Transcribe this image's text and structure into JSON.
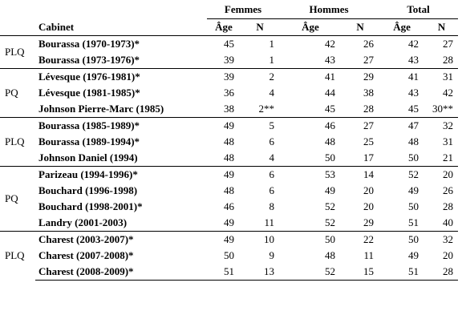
{
  "header": {
    "groups": [
      "Femmes",
      "Hommes",
      "Total"
    ],
    "cabinet_label": "Cabinet",
    "age_label": "Âge",
    "n_label": "N"
  },
  "groups": [
    {
      "party": "PLQ",
      "rows": [
        {
          "name": "Bourassa (1970-1973)*",
          "f_age": "45",
          "f_n": "1",
          "h_age": "42",
          "h_n": "26",
          "t_age": "42",
          "t_n": "27"
        },
        {
          "name": "Bourassa (1973-1976)*",
          "f_age": "39",
          "f_n": "1",
          "h_age": "43",
          "h_n": "27",
          "t_age": "43",
          "t_n": "28"
        }
      ]
    },
    {
      "party": "PQ",
      "rows": [
        {
          "name": "Lévesque (1976-1981)*",
          "f_age": "39",
          "f_n": "2",
          "h_age": "41",
          "h_n": "29",
          "t_age": "41",
          "t_n": "31"
        },
        {
          "name": "Lévesque (1981-1985)*",
          "f_age": "36",
          "f_n": "4",
          "h_age": "44",
          "h_n": "38",
          "t_age": "43",
          "t_n": "42"
        },
        {
          "name": "Johnson Pierre-Marc (1985)",
          "f_age": "38",
          "f_n": "2**",
          "h_age": "45",
          "h_n": "28",
          "t_age": "45",
          "t_n": "30**"
        }
      ]
    },
    {
      "party": "PLQ",
      "rows": [
        {
          "name": "Bourassa (1985-1989)*",
          "f_age": "49",
          "f_n": "5",
          "h_age": "46",
          "h_n": "27",
          "t_age": "47",
          "t_n": "32"
        },
        {
          "name": "Bourassa (1989-1994)*",
          "f_age": "48",
          "f_n": "6",
          "h_age": "48",
          "h_n": "25",
          "t_age": "48",
          "t_n": "31"
        },
        {
          "name": "Johnson Daniel (1994)",
          "f_age": "48",
          "f_n": "4",
          "h_age": "50",
          "h_n": "17",
          "t_age": "50",
          "t_n": "21"
        }
      ]
    },
    {
      "party": "PQ",
      "rows": [
        {
          "name": "Parizeau (1994-1996)*",
          "f_age": "49",
          "f_n": "6",
          "h_age": "53",
          "h_n": "14",
          "t_age": "52",
          "t_n": "20"
        },
        {
          "name": "Bouchard (1996-1998)",
          "f_age": "48",
          "f_n": "6",
          "h_age": "49",
          "h_n": "20",
          "t_age": "49",
          "t_n": "26"
        },
        {
          "name": "Bouchard (1998-2001)*",
          "f_age": "46",
          "f_n": "8",
          "h_age": "52",
          "h_n": "20",
          "t_age": "50",
          "t_n": "28"
        },
        {
          "name": "Landry (2001-2003)",
          "f_age": "49",
          "f_n": "11",
          "h_age": "52",
          "h_n": "29",
          "t_age": "51",
          "t_n": "40"
        }
      ]
    },
    {
      "party": "PLQ",
      "rows": [
        {
          "name": "Charest (2003-2007)*",
          "f_age": "49",
          "f_n": "10",
          "h_age": "50",
          "h_n": "22",
          "t_age": "50",
          "t_n": "32"
        },
        {
          "name": "Charest (2007-2008)*",
          "f_age": "50",
          "f_n": "9",
          "h_age": "48",
          "h_n": "11",
          "t_age": "49",
          "t_n": "20"
        },
        {
          "name": "Charest (2008-2009)*",
          "f_age": "51",
          "f_n": "13",
          "h_age": "52",
          "h_n": "15",
          "t_age": "51",
          "t_n": "28"
        }
      ]
    }
  ]
}
